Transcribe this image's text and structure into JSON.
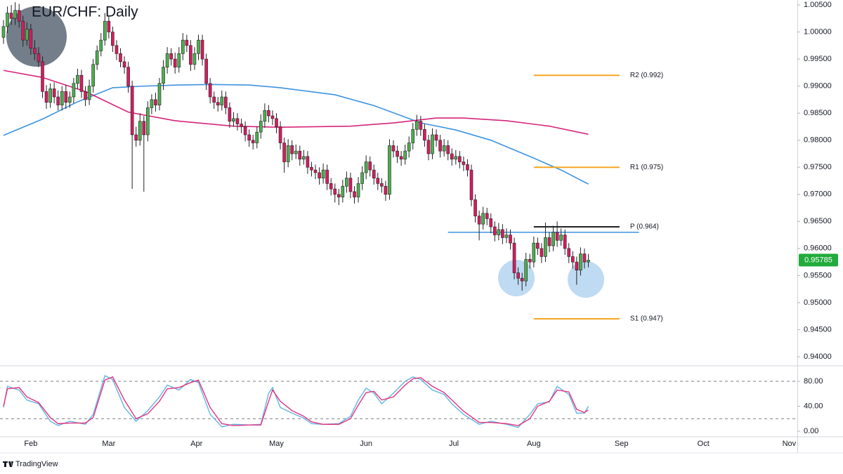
{
  "chart_data": [
    {
      "type": "candlestick",
      "title": "EUR/CHF: Daily",
      "up_color": "#4caf50",
      "down_color": "#d81b60",
      "wick_color": "#222222",
      "xlim": [
        -0.9,
        203.6
      ],
      "ylim": [
        0.93844,
        1.00591
      ],
      "xticks": [
        {
          "value": 7,
          "label": "Feb"
        },
        {
          "value": 27,
          "label": "Mar"
        },
        {
          "value": 49.5,
          "label": "Apr"
        },
        {
          "value": 70,
          "label": "May"
        },
        {
          "value": 93,
          "label": "Jun"
        },
        {
          "value": 115.5,
          "label": "Jul"
        },
        {
          "value": 136,
          "label": "Aug"
        },
        {
          "value": 158.5,
          "label": "Sep"
        },
        {
          "value": 179.5,
          "label": "Oct"
        },
        {
          "value": 201.5,
          "label": "Nov"
        }
      ],
      "yticks": [
        {
          "value": 0.94,
          "label": "0.94000"
        },
        {
          "value": 0.945,
          "label": "0.94500"
        },
        {
          "value": 0.95,
          "label": "0.95000"
        },
        {
          "value": 0.955,
          "label": "0.95500"
        },
        {
          "value": 0.96,
          "label": "0.96000"
        },
        {
          "value": 0.965,
          "label": "0.96500"
        },
        {
          "value": 0.97,
          "label": "0.97000"
        },
        {
          "value": 0.975,
          "label": "0.97500"
        },
        {
          "value": 0.98,
          "label": "0.98000"
        },
        {
          "value": 0.985,
          "label": "0.98500"
        },
        {
          "value": 0.99,
          "label": "0.99000"
        },
        {
          "value": 0.995,
          "label": "0.99500"
        },
        {
          "value": 1.0,
          "label": "1.00000"
        },
        {
          "value": 1.005,
          "label": "1.00500"
        }
      ],
      "open": [
        0.999,
        1.001,
        1.0035,
        1.0025,
        1.004,
        1.002,
        0.9985,
        1.0005,
        0.997,
        0.996,
        0.9945,
        0.989,
        0.987,
        0.9895,
        0.988,
        0.9865,
        0.989,
        0.987,
        0.988,
        0.9905,
        0.992,
        0.989,
        0.9875,
        0.99,
        0.994,
        0.9965,
        0.9985,
        1.002,
        1.0,
        0.9975,
        0.996,
        0.9945,
        0.9935,
        0.99,
        0.981,
        0.98,
        0.9835,
        0.981,
        0.986,
        0.9875,
        0.9865,
        0.9905,
        0.9935,
        0.996,
        0.995,
        0.9935,
        0.996,
        0.9985,
        0.9975,
        0.994,
        0.996,
        0.9985,
        0.995,
        0.9905,
        0.988,
        0.987,
        0.9865,
        0.988,
        0.986,
        0.9835,
        0.984,
        0.983,
        0.9825,
        0.981,
        0.98,
        0.9795,
        0.9815,
        0.9835,
        0.9855,
        0.9845,
        0.984,
        0.9825,
        0.9795,
        0.976,
        0.979,
        0.9775,
        0.978,
        0.9765,
        0.977,
        0.975,
        0.9745,
        0.974,
        0.973,
        0.9745,
        0.972,
        0.971,
        0.97,
        0.9695,
        0.9715,
        0.973,
        0.9705,
        0.9695,
        0.972,
        0.974,
        0.976,
        0.9745,
        0.973,
        0.972,
        0.9715,
        0.97,
        0.979,
        0.978,
        0.977,
        0.9765,
        0.978,
        0.9795,
        0.982,
        0.9835,
        0.982,
        0.98,
        0.9775,
        0.981,
        0.98,
        0.978,
        0.979,
        0.9775,
        0.9765,
        0.977,
        0.976,
        0.9755,
        0.9745,
        0.969,
        0.966,
        0.9645,
        0.9665,
        0.9655,
        0.964,
        0.9625,
        0.9635,
        0.962,
        0.9625,
        0.961,
        0.9555,
        0.9545,
        0.954,
        0.958,
        0.9575,
        0.961,
        0.96,
        0.9585,
        0.962,
        0.9605,
        0.963,
        0.9615,
        0.9625,
        0.96,
        0.9585,
        0.9575,
        0.956,
        0.959,
        0.9575
      ],
      "high": [
        1.0022,
        1.0047,
        1.005,
        1.0055,
        1.0052,
        1.003,
        1.0018,
        1.0015,
        0.9985,
        0.9972,
        0.9955,
        0.9902,
        0.9905,
        0.9907,
        0.9892,
        0.99,
        0.9902,
        0.989,
        0.9915,
        0.9932,
        0.993,
        0.99,
        0.9912,
        0.995,
        0.9975,
        0.9998,
        1.0035,
        1.003,
        1.001,
        0.9985,
        0.997,
        0.9955,
        0.9945,
        0.991,
        0.9825,
        0.985,
        0.9845,
        0.9872,
        0.9885,
        0.9888,
        0.9915,
        0.9948,
        0.9972,
        0.997,
        0.9962,
        0.9972,
        0.9998,
        0.9995,
        0.9985,
        0.9972,
        0.9995,
        0.9995,
        0.996,
        0.9915,
        0.989,
        0.988,
        0.9892,
        0.989,
        0.987,
        0.9852,
        0.985,
        0.984,
        0.9835,
        0.982,
        0.981,
        0.9825,
        0.9848,
        0.9868,
        0.9865,
        0.9855,
        0.985,
        0.9835,
        0.9805,
        0.9802,
        0.98,
        0.9792,
        0.979,
        0.9782,
        0.978,
        0.976,
        0.9755,
        0.975,
        0.9757,
        0.9755,
        0.973,
        0.972,
        0.971,
        0.9727,
        0.9742,
        0.974,
        0.9715,
        0.9732,
        0.9752,
        0.9772,
        0.977,
        0.9755,
        0.974,
        0.973,
        0.9725,
        0.9802,
        0.98,
        0.979,
        0.978,
        0.9792,
        0.9807,
        0.9832,
        0.9847,
        0.9845,
        0.983,
        0.981,
        0.9822,
        0.982,
        0.981,
        0.9802,
        0.98,
        0.9785,
        0.9782,
        0.978,
        0.977,
        0.9765,
        0.9755,
        0.97,
        0.967,
        0.9677,
        0.9675,
        0.9665,
        0.965,
        0.9647,
        0.9645,
        0.9637,
        0.9635,
        0.962,
        0.9565,
        0.9555,
        0.9592,
        0.959,
        0.9622,
        0.962,
        0.961,
        0.9648,
        0.963,
        0.9642,
        0.965,
        0.9637,
        0.9635,
        0.961,
        0.9595,
        0.9585,
        0.9602,
        0.96,
        0.959
      ],
      "low": [
        0.9978,
        0.9998,
        1.0013,
        1.0013,
        1.0008,
        0.9973,
        0.9975,
        0.9958,
        0.9948,
        0.9935,
        0.9878,
        0.9858,
        0.986,
        0.9868,
        0.9855,
        0.9855,
        0.9858,
        0.986,
        0.9868,
        0.9895,
        0.9878,
        0.9863,
        0.9865,
        0.9888,
        0.993,
        0.9955,
        0.9975,
        0.9988,
        0.9963,
        0.9948,
        0.9935,
        0.9923,
        0.9888,
        0.971,
        0.9788,
        0.979,
        0.9705,
        0.9798,
        0.9848,
        0.9853,
        0.9855,
        0.9893,
        0.9923,
        0.9938,
        0.9923,
        0.9925,
        0.9948,
        0.9963,
        0.9928,
        0.993,
        0.9948,
        0.9938,
        0.9893,
        0.9868,
        0.9858,
        0.9853,
        0.9855,
        0.9848,
        0.9823,
        0.9825,
        0.9818,
        0.9813,
        0.9798,
        0.9788,
        0.9783,
        0.9785,
        0.9803,
        0.9823,
        0.9833,
        0.9828,
        0.9813,
        0.9783,
        0.974,
        0.975,
        0.9763,
        0.9765,
        0.9753,
        0.9755,
        0.9738,
        0.9733,
        0.9728,
        0.9718,
        0.972,
        0.9708,
        0.9698,
        0.9685,
        0.968,
        0.9685,
        0.9703,
        0.9693,
        0.9683,
        0.9685,
        0.9708,
        0.9728,
        0.9733,
        0.9718,
        0.9708,
        0.9703,
        0.9688,
        0.969,
        0.9768,
        0.9758,
        0.9753,
        0.9755,
        0.9768,
        0.9783,
        0.9808,
        0.9808,
        0.9788,
        0.9763,
        0.9765,
        0.9788,
        0.9768,
        0.977,
        0.9763,
        0.9753,
        0.9755,
        0.9748,
        0.9743,
        0.9733,
        0.9678,
        0.9648,
        0.9615,
        0.9635,
        0.9643,
        0.9628,
        0.9613,
        0.9615,
        0.9608,
        0.961,
        0.9598,
        0.9543,
        0.9533,
        0.9522,
        0.953,
        0.9563,
        0.9565,
        0.9588,
        0.9573,
        0.9575,
        0.9593,
        0.9595,
        0.9603,
        0.9605,
        0.9588,
        0.9573,
        0.9563,
        0.9533,
        0.955,
        0.9563,
        0.9565
      ],
      "close": [
        1.001,
        1.0035,
        1.0025,
        1.004,
        1.002,
        0.9985,
        1.0005,
        0.997,
        0.996,
        0.9945,
        0.989,
        0.987,
        0.9895,
        0.988,
        0.9865,
        0.989,
        0.987,
        0.988,
        0.9905,
        0.992,
        0.989,
        0.9875,
        0.99,
        0.994,
        0.9965,
        0.9985,
        1.002,
        1.0,
        0.9975,
        0.996,
        0.9945,
        0.9935,
        0.99,
        0.981,
        0.98,
        0.9835,
        0.981,
        0.986,
        0.9875,
        0.9865,
        0.9905,
        0.9935,
        0.996,
        0.995,
        0.9935,
        0.996,
        0.9985,
        0.9975,
        0.994,
        0.996,
        0.9985,
        0.995,
        0.9905,
        0.988,
        0.987,
        0.9865,
        0.988,
        0.986,
        0.9835,
        0.984,
        0.983,
        0.9825,
        0.981,
        0.98,
        0.9795,
        0.9815,
        0.9835,
        0.9855,
        0.9845,
        0.984,
        0.9825,
        0.9795,
        0.976,
        0.979,
        0.9775,
        0.978,
        0.9765,
        0.977,
        0.975,
        0.9745,
        0.974,
        0.973,
        0.9745,
        0.972,
        0.971,
        0.97,
        0.9695,
        0.9715,
        0.973,
        0.9705,
        0.9695,
        0.972,
        0.974,
        0.976,
        0.9745,
        0.973,
        0.972,
        0.9715,
        0.97,
        0.979,
        0.978,
        0.977,
        0.9765,
        0.978,
        0.9795,
        0.982,
        0.9835,
        0.982,
        0.98,
        0.9775,
        0.981,
        0.98,
        0.978,
        0.979,
        0.9775,
        0.9765,
        0.977,
        0.976,
        0.9755,
        0.9745,
        0.969,
        0.966,
        0.9645,
        0.9665,
        0.9655,
        0.964,
        0.9625,
        0.9635,
        0.962,
        0.9625,
        0.961,
        0.9555,
        0.9545,
        0.954,
        0.958,
        0.9575,
        0.961,
        0.96,
        0.9585,
        0.962,
        0.9605,
        0.963,
        0.9615,
        0.9625,
        0.96,
        0.9585,
        0.9575,
        0.956,
        0.959,
        0.9575,
        0.95785
      ],
      "series": [
        {
          "color": "#3d93e0",
          "x": [
            0,
            10,
            19,
            28,
            36,
            45,
            53,
            63,
            71,
            85,
            95,
            107,
            116,
            125,
            136,
            143,
            150
          ],
          "values": [
            0.9809,
            0.9839,
            0.9871,
            0.9897,
            0.99,
            0.9902,
            0.9903,
            0.9902,
            0.9897,
            0.9884,
            0.9864,
            0.9832,
            0.9819,
            0.98,
            0.9767,
            0.9745,
            0.9719
          ]
        },
        {
          "color": "#d6247a",
          "x": [
            0,
            10,
            21,
            32,
            44,
            59,
            71,
            89,
            100,
            111,
            118,
            129,
            140,
            150
          ],
          "values": [
            0.9929,
            0.9916,
            0.989,
            0.9852,
            0.9836,
            0.9826,
            0.9824,
            0.9826,
            0.9832,
            0.9841,
            0.9841,
            0.9836,
            0.9826,
            0.9811
          ]
        }
      ],
      "levels": [
        {
          "label": "R2 (0.992)",
          "value": 0.992,
          "x": [
            136,
            158
          ],
          "color": "#f5a623"
        },
        {
          "label": "R1 (0.975)",
          "value": 0.975,
          "x": [
            136,
            158
          ],
          "color": "#f5a623"
        },
        {
          "label": "P (0.964)",
          "value": 0.964,
          "x": [
            136,
            158
          ],
          "color": "#222222"
        },
        {
          "label": "S1 (0.947)",
          "value": 0.947,
          "x": [
            136,
            158
          ],
          "color": "#f5a623"
        }
      ],
      "lines": [
        {
          "value": 0.963,
          "x": [
            114,
            163
          ],
          "color": "#3d93e0"
        }
      ],
      "last_price": 0.95785,
      "last_price_color": "#22ab3c"
    },
    {
      "type": "line",
      "xlim": [
        -0.9,
        203.6
      ],
      "ylim": [
        -9,
        103.7
      ],
      "yticks": [
        {
          "value": 0,
          "label": "0.00"
        },
        {
          "value": 40,
          "label": "40.00"
        },
        {
          "value": 80,
          "label": "80.00"
        }
      ],
      "bands": [
        20,
        80
      ],
      "x": [
        0,
        1,
        4,
        6,
        9,
        12,
        14,
        17,
        21,
        23,
        26,
        28,
        31,
        34,
        37,
        40,
        42,
        45,
        48,
        50,
        53,
        56,
        59,
        63,
        66,
        68,
        69,
        71,
        74,
        77,
        79,
        82,
        86,
        89,
        91,
        93,
        95,
        97,
        100,
        103,
        105,
        107,
        110,
        113,
        115,
        118,
        122,
        125,
        129,
        132,
        135,
        137,
        140,
        142,
        145,
        147,
        149,
        150
      ],
      "series": [
        {
          "color": "#5fb4e8",
          "values": [
            38,
            72,
            66,
            50,
            44,
            16,
            9,
            16,
            11,
            27,
            89,
            83,
            38,
            16,
            33,
            55,
            74,
            66,
            83,
            78,
            27,
            7,
            11,
            10,
            11,
            61,
            70,
            38,
            29,
            21,
            12,
            11,
            12,
            24,
            50,
            69,
            61,
            44,
            61,
            80,
            87,
            83,
            66,
            59,
            44,
            27,
            11,
            16,
            11,
            6,
            27,
            44,
            47,
            72,
            59,
            29,
            29,
            40
          ]
        },
        {
          "color": "#e5337f",
          "values": [
            40,
            68,
            70,
            55,
            46,
            22,
            12,
            13,
            13,
            22,
            82,
            87,
            50,
            20,
            28,
            48,
            68,
            70,
            78,
            82,
            38,
            12,
            9,
            10,
            10,
            48,
            66,
            48,
            33,
            24,
            15,
            11,
            11,
            20,
            42,
            62,
            64,
            50,
            55,
            74,
            84,
            86,
            72,
            62,
            50,
            32,
            14,
            14,
            12,
            9,
            20,
            40,
            48,
            66,
            63,
            35,
            30,
            34
          ]
        }
      ]
    }
  ],
  "footer": "TradingView"
}
